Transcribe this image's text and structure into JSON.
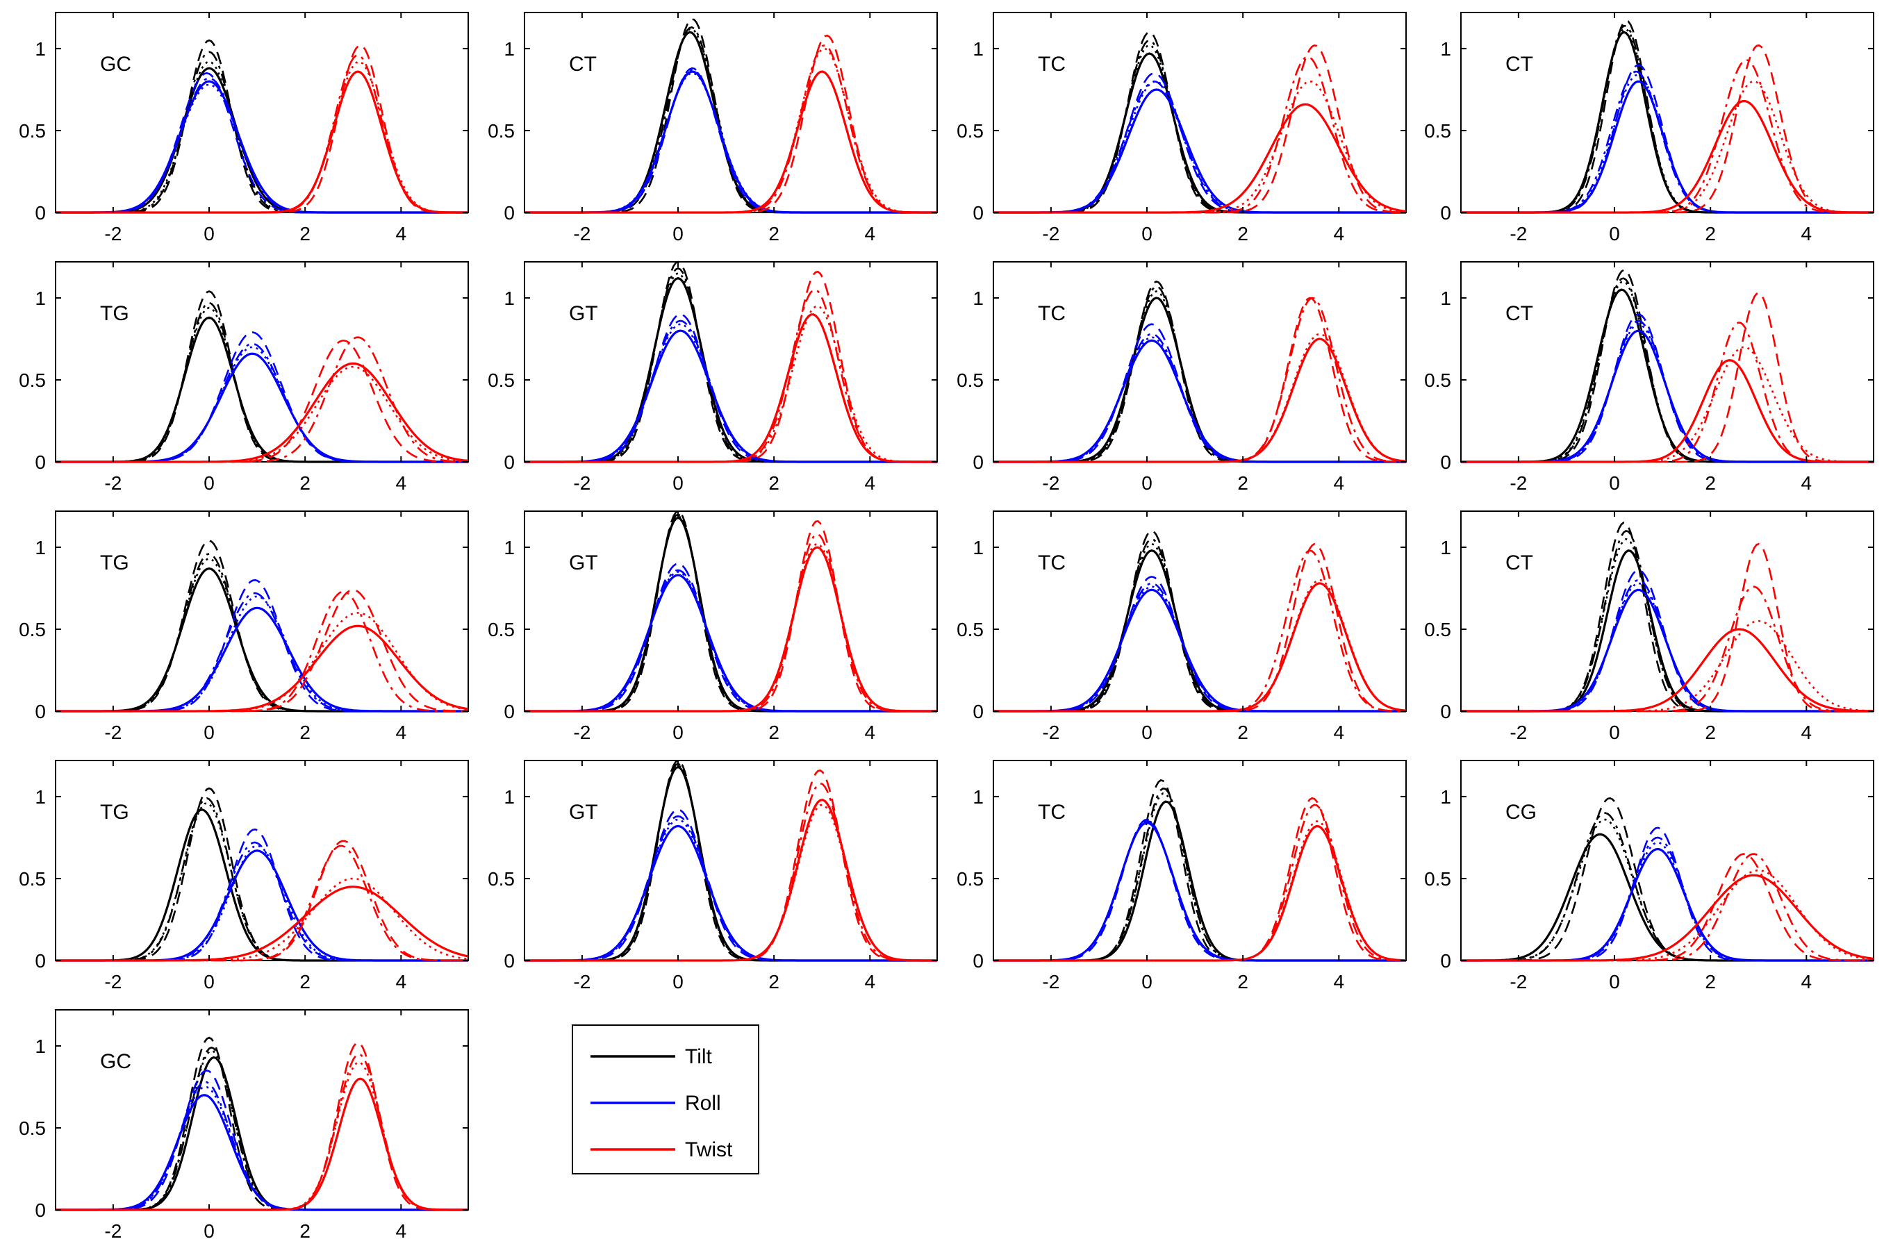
{
  "chart_data": {
    "type": "line",
    "layout": "5 rows x 4 columns grid of small-multiple density plots; last row has one panel plus a legend box",
    "shared_axes": {
      "xlim": [
        -3.2,
        5.4
      ],
      "ylim": [
        0,
        1.22
      ],
      "xticks": [
        -2,
        0,
        2,
        4
      ],
      "xtick_labels": [
        "-2",
        "0",
        "2",
        "4"
      ],
      "yticks": [
        0,
        0.5,
        1
      ],
      "ytick_labels": [
        "0",
        "0.5",
        "1"
      ],
      "grid": false
    },
    "line_styles": [
      "solid",
      "dashed",
      "dashdot",
      "dotted"
    ],
    "legend": {
      "placement": "bottom-center",
      "entries": [
        {
          "label": "Tilt",
          "color": "#000000"
        },
        {
          "label": "Roll",
          "color": "#0000ff"
        },
        {
          "label": "Twist",
          "color": "#ff0000"
        }
      ]
    },
    "panels": [
      {
        "label": "GC",
        "tilt": [
          [
            0.0,
            0.55,
            0.88
          ],
          [
            0.0,
            0.45,
            1.05
          ],
          [
            0.0,
            0.48,
            0.98
          ],
          [
            0.0,
            0.5,
            0.92
          ]
        ],
        "roll": [
          [
            0.0,
            0.6,
            0.8
          ],
          [
            -0.05,
            0.55,
            0.85
          ],
          [
            0.0,
            0.58,
            0.82
          ],
          [
            0.0,
            0.6,
            0.78
          ]
        ],
        "twist": [
          [
            3.1,
            0.5,
            0.86
          ],
          [
            3.15,
            0.45,
            1.02
          ],
          [
            3.1,
            0.48,
            0.96
          ],
          [
            3.12,
            0.5,
            0.92
          ]
        ]
      },
      {
        "label": "CT",
        "tilt": [
          [
            0.25,
            0.5,
            1.1
          ],
          [
            0.3,
            0.45,
            1.18
          ],
          [
            0.28,
            0.48,
            1.13
          ],
          [
            0.27,
            0.5,
            1.12
          ]
        ],
        "roll": [
          [
            0.3,
            0.55,
            0.86
          ],
          [
            0.3,
            0.52,
            0.88
          ],
          [
            0.3,
            0.54,
            0.87
          ],
          [
            0.3,
            0.56,
            0.85
          ]
        ],
        "twist": [
          [
            3.0,
            0.5,
            0.86
          ],
          [
            3.1,
            0.45,
            1.08
          ],
          [
            3.05,
            0.48,
            1.02
          ],
          [
            3.05,
            0.5,
            1.0
          ]
        ]
      },
      {
        "label": "TC",
        "tilt": [
          [
            0.05,
            0.5,
            0.97
          ],
          [
            0.05,
            0.45,
            1.1
          ],
          [
            0.05,
            0.47,
            1.05
          ],
          [
            0.05,
            0.48,
            1.02
          ]
        ],
        "roll": [
          [
            0.2,
            0.6,
            0.75
          ],
          [
            0.15,
            0.55,
            0.85
          ],
          [
            0.15,
            0.58,
            0.8
          ],
          [
            0.18,
            0.58,
            0.8
          ]
        ],
        "twist": [
          [
            3.3,
            0.7,
            0.66
          ],
          [
            3.5,
            0.48,
            1.02
          ],
          [
            3.35,
            0.5,
            0.95
          ],
          [
            3.4,
            0.6,
            0.8
          ]
        ]
      },
      {
        "label": "CT",
        "tilt": [
          [
            0.2,
            0.45,
            1.1
          ],
          [
            0.25,
            0.42,
            1.17
          ],
          [
            0.22,
            0.44,
            1.14
          ],
          [
            0.22,
            0.45,
            1.12
          ]
        ],
        "roll": [
          [
            0.5,
            0.5,
            0.8
          ],
          [
            0.5,
            0.48,
            0.9
          ],
          [
            0.45,
            0.5,
            0.86
          ],
          [
            0.48,
            0.5,
            0.84
          ]
        ],
        "twist": [
          [
            2.7,
            0.6,
            0.68
          ],
          [
            3.0,
            0.45,
            1.02
          ],
          [
            2.75,
            0.5,
            0.93
          ],
          [
            2.9,
            0.55,
            0.8
          ]
        ]
      },
      {
        "label": "TG",
        "tilt": [
          [
            0.0,
            0.5,
            0.88
          ],
          [
            0.0,
            0.45,
            1.04
          ],
          [
            0.0,
            0.47,
            0.97
          ],
          [
            0.0,
            0.48,
            0.94
          ]
        ],
        "roll": [
          [
            0.9,
            0.65,
            0.66
          ],
          [
            0.9,
            0.6,
            0.79
          ],
          [
            0.9,
            0.62,
            0.72
          ],
          [
            0.9,
            0.63,
            0.7
          ]
        ],
        "twist": [
          [
            3.0,
            0.8,
            0.6
          ],
          [
            2.8,
            0.6,
            0.74
          ],
          [
            3.1,
            0.6,
            0.76
          ],
          [
            3.0,
            0.75,
            0.58
          ]
        ]
      },
      {
        "label": "GT",
        "tilt": [
          [
            0.0,
            0.5,
            1.12
          ],
          [
            0.0,
            0.45,
            1.22
          ],
          [
            0.0,
            0.47,
            1.18
          ],
          [
            0.0,
            0.48,
            1.15
          ]
        ],
        "roll": [
          [
            0.05,
            0.6,
            0.8
          ],
          [
            0.05,
            0.55,
            0.9
          ],
          [
            0.05,
            0.58,
            0.86
          ],
          [
            0.05,
            0.58,
            0.84
          ]
        ],
        "twist": [
          [
            2.8,
            0.5,
            0.9
          ],
          [
            2.9,
            0.45,
            1.16
          ],
          [
            2.85,
            0.48,
            1.05
          ],
          [
            2.9,
            0.5,
            0.95
          ]
        ]
      },
      {
        "label": "TC",
        "tilt": [
          [
            0.2,
            0.5,
            1.0
          ],
          [
            0.2,
            0.45,
            1.1
          ],
          [
            0.2,
            0.47,
            1.07
          ],
          [
            0.2,
            0.48,
            1.04
          ]
        ],
        "roll": [
          [
            0.1,
            0.6,
            0.74
          ],
          [
            0.1,
            0.55,
            0.84
          ],
          [
            0.1,
            0.58,
            0.78
          ],
          [
            0.1,
            0.58,
            0.76
          ]
        ],
        "twist": [
          [
            3.6,
            0.55,
            0.75
          ],
          [
            3.4,
            0.45,
            1.0
          ],
          [
            3.45,
            0.48,
            1.0
          ],
          [
            3.6,
            0.55,
            0.78
          ]
        ]
      },
      {
        "label": "CT",
        "tilt": [
          [
            0.15,
            0.5,
            1.05
          ],
          [
            0.2,
            0.45,
            1.17
          ],
          [
            0.18,
            0.47,
            1.12
          ],
          [
            0.18,
            0.48,
            1.1
          ]
        ],
        "roll": [
          [
            0.5,
            0.55,
            0.8
          ],
          [
            0.5,
            0.5,
            0.9
          ],
          [
            0.5,
            0.52,
            0.86
          ],
          [
            0.5,
            0.53,
            0.84
          ]
        ],
        "twist": [
          [
            2.4,
            0.55,
            0.62
          ],
          [
            3.0,
            0.4,
            1.03
          ],
          [
            2.6,
            0.45,
            0.85
          ],
          [
            2.7,
            0.6,
            0.7
          ]
        ]
      },
      {
        "label": "TG",
        "tilt": [
          [
            0.0,
            0.55,
            0.87
          ],
          [
            0.0,
            0.5,
            1.04
          ],
          [
            0.0,
            0.52,
            0.96
          ],
          [
            0.0,
            0.53,
            0.93
          ]
        ],
        "roll": [
          [
            1.0,
            0.65,
            0.63
          ],
          [
            0.95,
            0.55,
            0.8
          ],
          [
            0.95,
            0.6,
            0.72
          ],
          [
            1.0,
            0.6,
            0.7
          ]
        ],
        "twist": [
          [
            3.1,
            0.85,
            0.52
          ],
          [
            3.0,
            0.6,
            0.74
          ],
          [
            2.8,
            0.55,
            0.73
          ],
          [
            3.1,
            0.8,
            0.6
          ]
        ]
      },
      {
        "label": "GT",
        "tilt": [
          [
            0.0,
            0.45,
            1.18
          ],
          [
            0.0,
            0.42,
            1.22
          ],
          [
            0.0,
            0.44,
            1.2
          ],
          [
            0.0,
            0.44,
            1.19
          ]
        ],
        "roll": [
          [
            0.0,
            0.6,
            0.83
          ],
          [
            0.0,
            0.55,
            0.9
          ],
          [
            0.0,
            0.58,
            0.86
          ],
          [
            0.0,
            0.58,
            0.85
          ]
        ],
        "twist": [
          [
            2.9,
            0.48,
            1.0
          ],
          [
            2.9,
            0.42,
            1.16
          ],
          [
            2.9,
            0.45,
            1.08
          ],
          [
            2.9,
            0.48,
            1.02
          ]
        ]
      },
      {
        "label": "TC",
        "tilt": [
          [
            0.1,
            0.5,
            0.98
          ],
          [
            0.1,
            0.45,
            1.1
          ],
          [
            0.1,
            0.47,
            1.05
          ],
          [
            0.1,
            0.48,
            1.02
          ]
        ],
        "roll": [
          [
            0.1,
            0.6,
            0.74
          ],
          [
            0.1,
            0.55,
            0.82
          ],
          [
            0.1,
            0.58,
            0.78
          ],
          [
            0.1,
            0.58,
            0.76
          ]
        ],
        "twist": [
          [
            3.6,
            0.55,
            0.78
          ],
          [
            3.5,
            0.45,
            1.02
          ],
          [
            3.4,
            0.48,
            0.98
          ],
          [
            3.6,
            0.55,
            0.8
          ]
        ]
      },
      {
        "label": "CT",
        "tilt": [
          [
            0.3,
            0.45,
            0.98
          ],
          [
            0.2,
            0.42,
            1.15
          ],
          [
            0.25,
            0.44,
            1.1
          ],
          [
            0.25,
            0.45,
            1.05
          ]
        ],
        "roll": [
          [
            0.5,
            0.55,
            0.74
          ],
          [
            0.5,
            0.5,
            0.86
          ],
          [
            0.5,
            0.52,
            0.8
          ],
          [
            0.5,
            0.53,
            0.78
          ]
        ],
        "twist": [
          [
            2.6,
            0.75,
            0.5
          ],
          [
            3.0,
            0.4,
            1.02
          ],
          [
            2.9,
            0.5,
            0.76
          ],
          [
            3.0,
            0.7,
            0.55
          ]
        ]
      },
      {
        "label": "TG",
        "tilt": [
          [
            -0.15,
            0.5,
            0.92
          ],
          [
            0.0,
            0.45,
            1.05
          ],
          [
            -0.05,
            0.47,
            0.99
          ],
          [
            -0.05,
            0.48,
            0.96
          ]
        ],
        "roll": [
          [
            1.0,
            0.6,
            0.67
          ],
          [
            0.95,
            0.5,
            0.8
          ],
          [
            0.95,
            0.55,
            0.72
          ],
          [
            1.0,
            0.55,
            0.7
          ]
        ],
        "twist": [
          [
            3.0,
            1.0,
            0.45
          ],
          [
            2.8,
            0.55,
            0.73
          ],
          [
            2.75,
            0.55,
            0.7
          ],
          [
            3.0,
            0.85,
            0.5
          ]
        ]
      },
      {
        "label": "GT",
        "tilt": [
          [
            0.0,
            0.45,
            1.18
          ],
          [
            0.0,
            0.42,
            1.22
          ],
          [
            0.0,
            0.44,
            1.2
          ],
          [
            0.0,
            0.44,
            1.19
          ]
        ],
        "roll": [
          [
            0.0,
            0.6,
            0.82
          ],
          [
            0.0,
            0.55,
            0.92
          ],
          [
            0.0,
            0.58,
            0.88
          ],
          [
            0.0,
            0.58,
            0.86
          ]
        ],
        "twist": [
          [
            3.0,
            0.5,
            0.98
          ],
          [
            2.95,
            0.45,
            1.16
          ],
          [
            2.97,
            0.47,
            1.08
          ],
          [
            3.0,
            0.5,
            0.95
          ]
        ]
      },
      {
        "label": "TC",
        "tilt": [
          [
            0.4,
            0.45,
            0.97
          ],
          [
            0.3,
            0.42,
            1.1
          ],
          [
            0.35,
            0.44,
            1.05
          ],
          [
            0.35,
            0.44,
            1.02
          ]
        ],
        "roll": [
          [
            0.0,
            0.55,
            0.84
          ],
          [
            0.0,
            0.52,
            0.86
          ],
          [
            0.0,
            0.54,
            0.85
          ],
          [
            0.0,
            0.55,
            0.84
          ]
        ],
        "twist": [
          [
            3.55,
            0.5,
            0.82
          ],
          [
            3.45,
            0.45,
            0.99
          ],
          [
            3.5,
            0.47,
            0.95
          ],
          [
            3.55,
            0.5,
            0.85
          ]
        ]
      },
      {
        "label": "CG",
        "tilt": [
          [
            -0.3,
            0.6,
            0.77
          ],
          [
            -0.1,
            0.5,
            0.99
          ],
          [
            -0.2,
            0.55,
            0.9
          ],
          [
            -0.2,
            0.56,
            0.86
          ]
        ],
        "roll": [
          [
            0.9,
            0.55,
            0.68
          ],
          [
            0.9,
            0.48,
            0.81
          ],
          [
            0.9,
            0.52,
            0.75
          ],
          [
            0.9,
            0.52,
            0.72
          ]
        ],
        "twist": [
          [
            2.9,
            0.9,
            0.52
          ],
          [
            2.7,
            0.55,
            0.65
          ],
          [
            2.9,
            0.55,
            0.65
          ],
          [
            3.0,
            0.8,
            0.55
          ]
        ]
      },
      {
        "label": "GC",
        "tilt": [
          [
            0.1,
            0.45,
            0.93
          ],
          [
            0.0,
            0.42,
            1.05
          ],
          [
            0.05,
            0.44,
            0.99
          ],
          [
            0.05,
            0.45,
            0.97
          ]
        ],
        "roll": [
          [
            -0.1,
            0.55,
            0.7
          ],
          [
            -0.05,
            0.5,
            0.85
          ],
          [
            -0.08,
            0.52,
            0.78
          ],
          [
            -0.08,
            0.53,
            0.75
          ]
        ],
        "twist": [
          [
            3.15,
            0.45,
            0.8
          ],
          [
            3.1,
            0.42,
            1.02
          ],
          [
            3.12,
            0.44,
            0.95
          ],
          [
            3.12,
            0.45,
            0.9
          ]
        ]
      }
    ]
  }
}
